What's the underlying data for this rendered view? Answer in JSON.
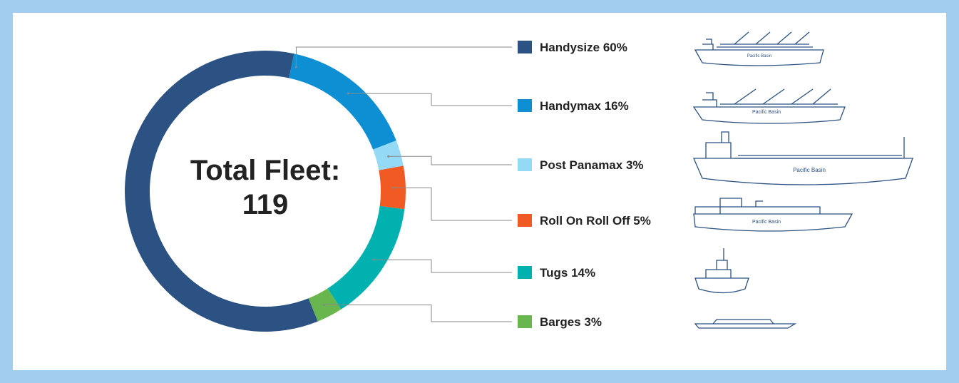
{
  "chart_data": {
    "type": "donut",
    "center_title": "Total Fleet:",
    "total": 119,
    "categories": [
      "Handysize",
      "Handymax",
      "Post Panamax",
      "Roll On Roll Off",
      "Tugs",
      "Barges"
    ],
    "values": [
      60,
      16,
      3,
      5,
      14,
      3
    ],
    "value_labels": [
      "60%",
      "16%",
      "3%",
      "5%",
      "14%",
      "3%"
    ],
    "colors": [
      "#2b5283",
      "#0e8fd4",
      "#94d9f5",
      "#f15a22",
      "#00b1b0",
      "#6ab64e"
    ],
    "ship_label": "Pacific Basin"
  }
}
